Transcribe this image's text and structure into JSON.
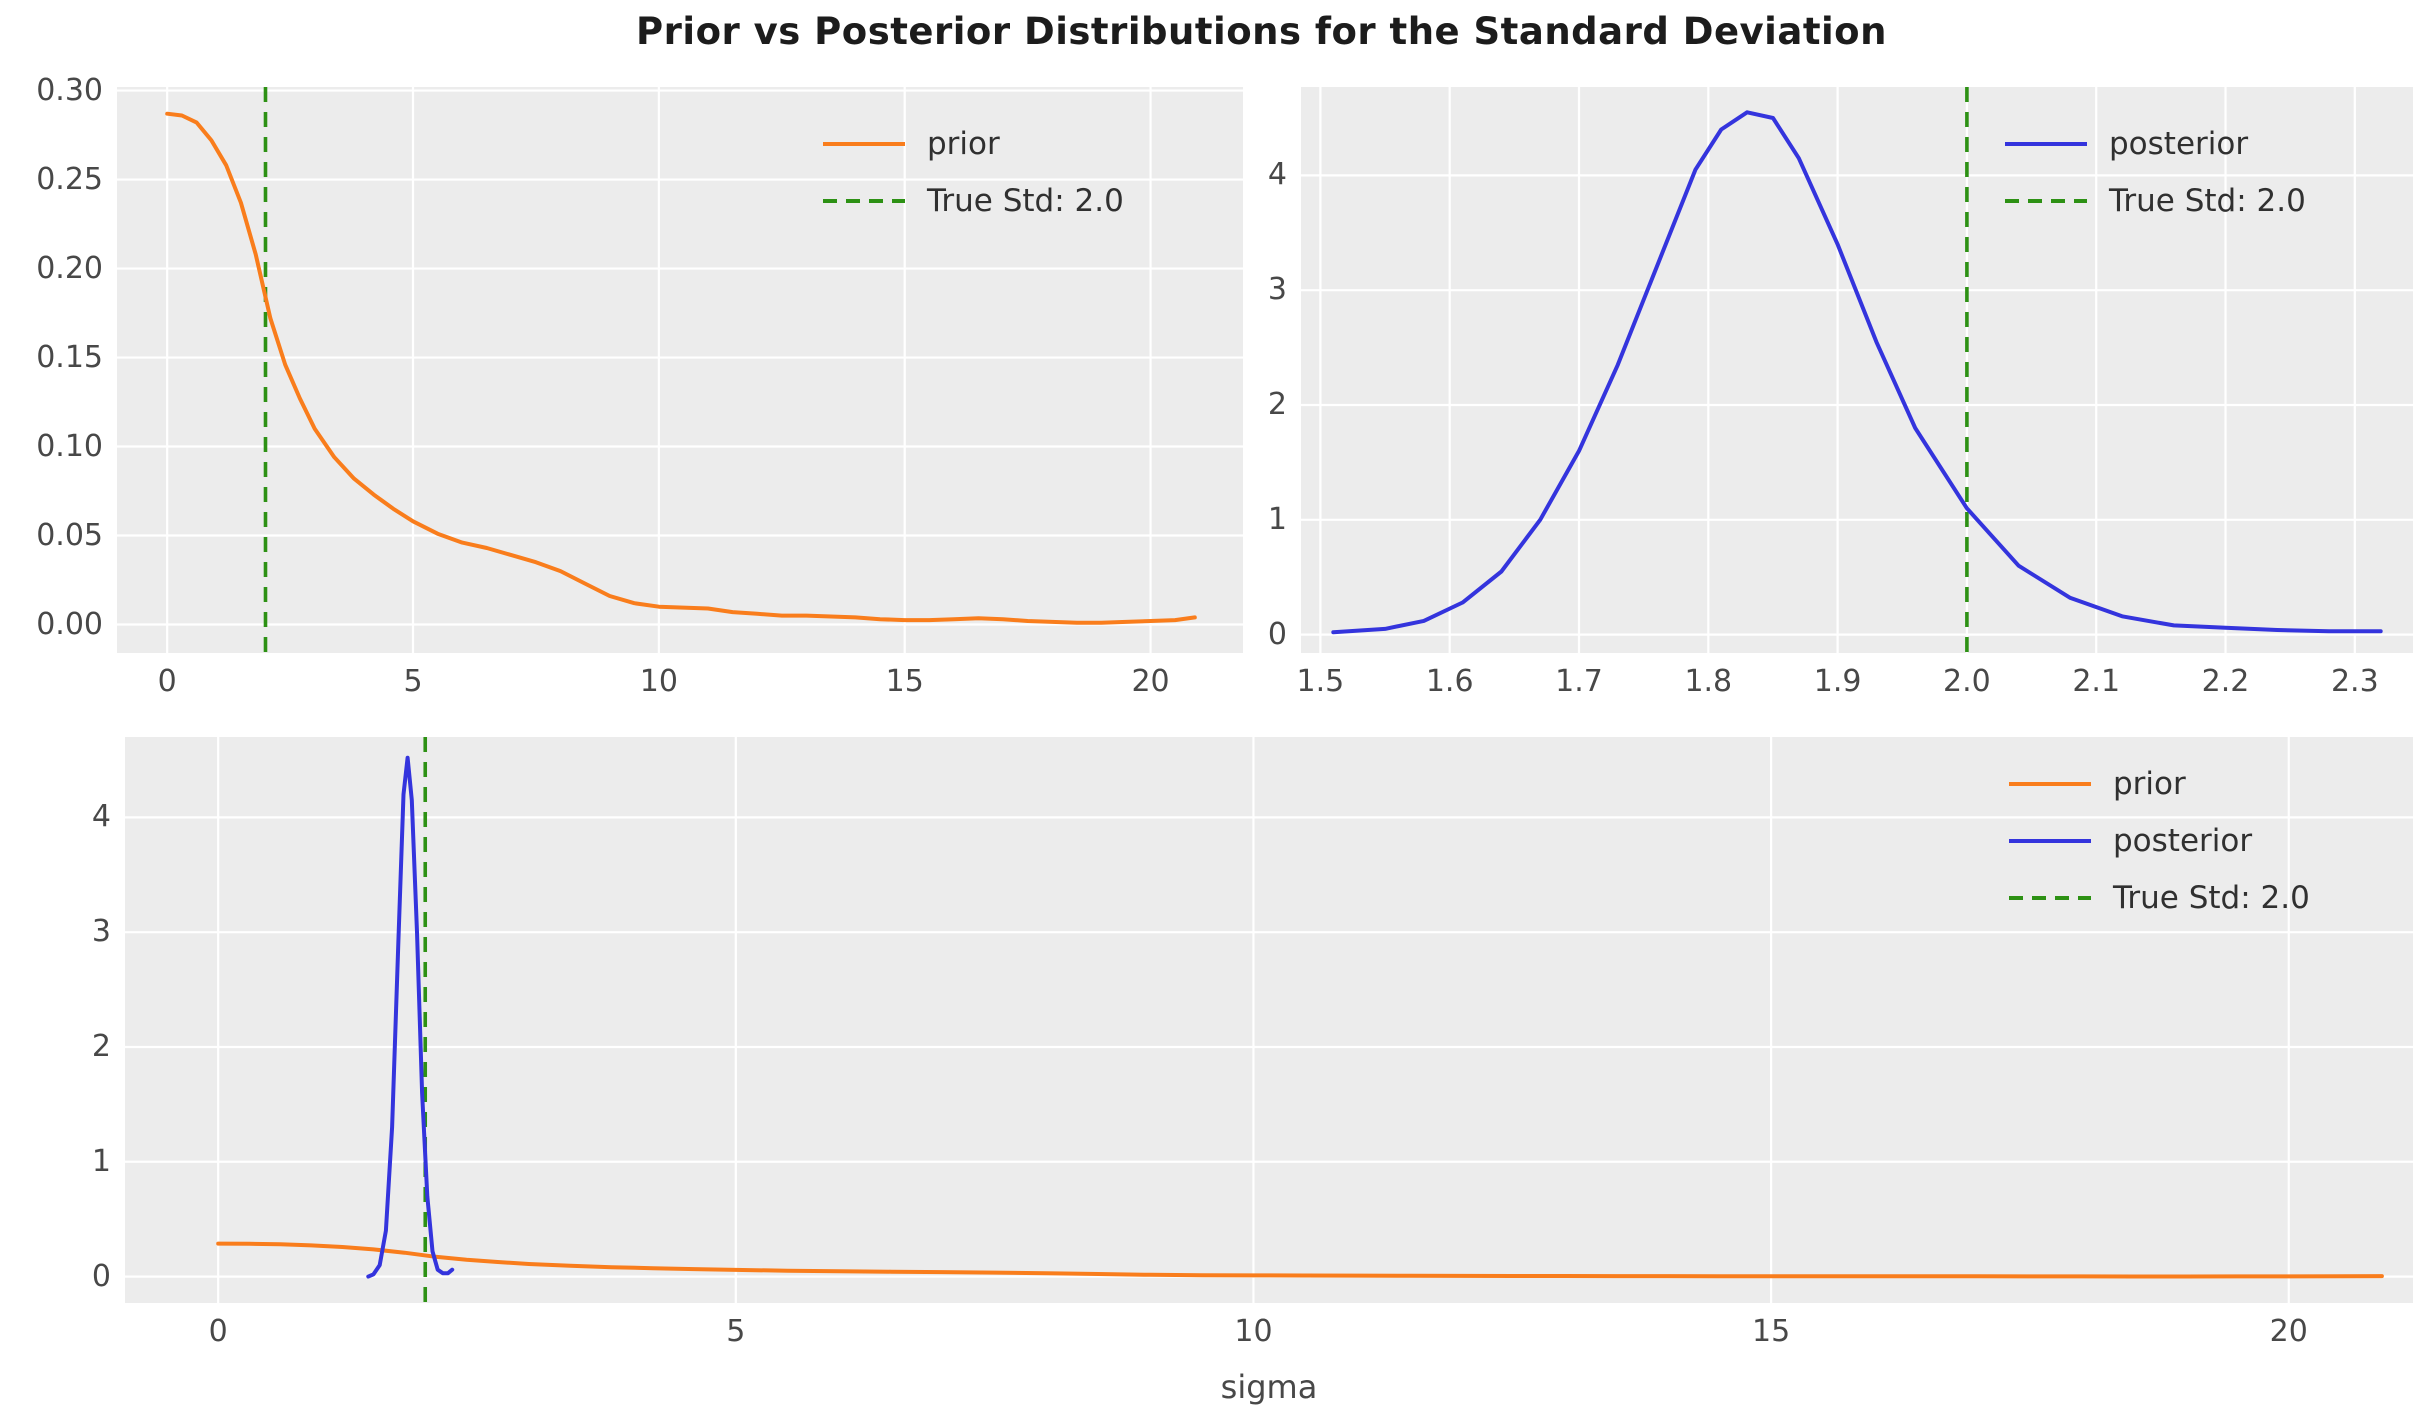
{
  "title": "Prior vs Posterior Distributions for the Standard Deviation",
  "colors": {
    "figure_bg": "#ffffff",
    "plot_bg": "#ececec",
    "grid": "#ffffff",
    "prior": "#f97d1c",
    "posterior": "#3434dd",
    "true_std": "#2d9114",
    "tick_text": "#484848",
    "legend_text": "#303030",
    "title_text": "#1c1c1c"
  },
  "chart_data": [
    {
      "type": "line",
      "name": "prior-distribution",
      "xlim": [
        -1.02,
        21.88
      ],
      "ylim": [
        -0.016,
        0.302
      ],
      "xticks": [
        0,
        5,
        10,
        15,
        20
      ],
      "xtick_labels": [
        "0",
        "5",
        "10",
        "15",
        "20"
      ],
      "yticks": [
        0.0,
        0.05,
        0.1,
        0.15,
        0.2,
        0.25,
        0.3
      ],
      "ytick_labels": [
        "0.00",
        "0.05",
        "0.10",
        "0.15",
        "0.20",
        "0.25",
        "0.30"
      ],
      "xlabel": "",
      "grid": true,
      "vline": {
        "x": 2.0,
        "label": "True Std: 2.0",
        "color": "true_std"
      },
      "series": [
        {
          "name": "prior",
          "color": "prior",
          "x": [
            0,
            0.3,
            0.6,
            0.9,
            1.2,
            1.5,
            1.8,
            2.1,
            2.4,
            2.7,
            3.0,
            3.4,
            3.8,
            4.2,
            4.6,
            5.0,
            5.5,
            6.0,
            6.5,
            7.0,
            7.5,
            8.0,
            8.5,
            9.0,
            9.5,
            10.0,
            10.5,
            11.0,
            11.5,
            12.0,
            12.5,
            13.0,
            13.5,
            14.0,
            14.5,
            15.0,
            15.5,
            16.0,
            16.5,
            17.0,
            17.5,
            18.0,
            18.5,
            19.0,
            19.5,
            20.0,
            20.5,
            20.9
          ],
          "y": [
            0.287,
            0.286,
            0.282,
            0.272,
            0.258,
            0.237,
            0.208,
            0.172,
            0.146,
            0.127,
            0.11,
            0.094,
            0.082,
            0.073,
            0.065,
            0.058,
            0.051,
            0.046,
            0.043,
            0.039,
            0.035,
            0.03,
            0.023,
            0.016,
            0.012,
            0.01,
            0.0095,
            0.009,
            0.007,
            0.006,
            0.005,
            0.005,
            0.0045,
            0.004,
            0.003,
            0.0025,
            0.0025,
            0.003,
            0.0035,
            0.003,
            0.002,
            0.0015,
            0.001,
            0.001,
            0.0015,
            0.002,
            0.0025,
            0.004
          ]
        }
      ],
      "legend": [
        {
          "label": "prior",
          "color": "prior",
          "dashed": false
        },
        {
          "label": "True Std: 2.0",
          "color": "true_std",
          "dashed": true
        }
      ]
    },
    {
      "type": "line",
      "name": "posterior-distribution",
      "xlim": [
        1.485,
        2.345
      ],
      "ylim": [
        -0.16,
        4.77
      ],
      "xticks": [
        1.5,
        1.6,
        1.7,
        1.8,
        1.9,
        2.0,
        2.1,
        2.2,
        2.3
      ],
      "xtick_labels": [
        "1.5",
        "1.6",
        "1.7",
        "1.8",
        "1.9",
        "2.0",
        "2.1",
        "2.2",
        "2.3"
      ],
      "yticks": [
        0,
        1,
        2,
        3,
        4
      ],
      "ytick_labels": [
        "0",
        "1",
        "2",
        "3",
        "4"
      ],
      "xlabel": "",
      "grid": true,
      "vline": {
        "x": 2.0,
        "label": "True Std: 2.0",
        "color": "true_std"
      },
      "series": [
        {
          "name": "posterior",
          "color": "posterior",
          "x": [
            1.51,
            1.55,
            1.58,
            1.61,
            1.64,
            1.67,
            1.7,
            1.73,
            1.76,
            1.79,
            1.81,
            1.83,
            1.85,
            1.87,
            1.9,
            1.93,
            1.96,
            2.0,
            2.04,
            2.08,
            2.12,
            2.16,
            2.2,
            2.24,
            2.28,
            2.32
          ],
          "y": [
            0.02,
            0.05,
            0.12,
            0.28,
            0.55,
            1.0,
            1.6,
            2.35,
            3.2,
            4.05,
            4.4,
            4.55,
            4.5,
            4.15,
            3.4,
            2.55,
            1.8,
            1.1,
            0.6,
            0.32,
            0.16,
            0.08,
            0.06,
            0.04,
            0.03,
            0.03
          ]
        }
      ],
      "legend": [
        {
          "label": "posterior",
          "color": "posterior",
          "dashed": false
        },
        {
          "label": "True Std: 2.0",
          "color": "true_std",
          "dashed": true
        }
      ]
    },
    {
      "type": "line",
      "name": "prior-vs-posterior-combined",
      "xlim": [
        -0.9,
        21.2
      ],
      "ylim": [
        -0.23,
        4.7
      ],
      "xticks": [
        0,
        5,
        10,
        15,
        20
      ],
      "xtick_labels": [
        "0",
        "5",
        "10",
        "15",
        "20"
      ],
      "yticks": [
        0,
        1,
        2,
        3,
        4
      ],
      "ytick_labels": [
        "0",
        "1",
        "2",
        "3",
        "4"
      ],
      "xlabel": "sigma",
      "grid": true,
      "vline": {
        "x": 2.0,
        "label": "True Std: 2.0",
        "color": "true_std"
      },
      "series": [
        {
          "name": "prior",
          "color": "prior",
          "x": [
            0,
            0.3,
            0.6,
            0.9,
            1.2,
            1.5,
            1.8,
            2.1,
            2.4,
            2.7,
            3.0,
            3.4,
            3.8,
            4.2,
            4.6,
            5.0,
            5.5,
            6.0,
            6.5,
            7.0,
            7.5,
            8.0,
            8.5,
            9.0,
            9.5,
            10.0,
            10.5,
            11.0,
            11.5,
            12.0,
            12.5,
            13.0,
            13.5,
            14.0,
            14.5,
            15.0,
            15.5,
            16.0,
            16.5,
            17.0,
            17.5,
            18.0,
            18.5,
            19.0,
            19.5,
            20.0,
            20.5,
            20.9
          ],
          "y": [
            0.287,
            0.286,
            0.282,
            0.272,
            0.258,
            0.237,
            0.208,
            0.172,
            0.146,
            0.127,
            0.11,
            0.094,
            0.082,
            0.073,
            0.065,
            0.058,
            0.051,
            0.046,
            0.043,
            0.039,
            0.035,
            0.03,
            0.023,
            0.016,
            0.012,
            0.01,
            0.0095,
            0.009,
            0.007,
            0.006,
            0.005,
            0.005,
            0.0045,
            0.004,
            0.003,
            0.0025,
            0.0025,
            0.003,
            0.0035,
            0.003,
            0.002,
            0.0015,
            0.001,
            0.001,
            0.0015,
            0.002,
            0.0025,
            0.004
          ]
        },
        {
          "name": "posterior",
          "color": "posterior",
          "x": [
            1.45,
            1.5,
            1.56,
            1.62,
            1.68,
            1.74,
            1.79,
            1.83,
            1.87,
            1.92,
            1.97,
            2.02,
            2.07,
            2.12,
            2.17,
            2.22,
            2.26
          ],
          "y": [
            0.0,
            0.02,
            0.1,
            0.4,
            1.3,
            2.9,
            4.2,
            4.52,
            4.15,
            3.0,
            1.6,
            0.7,
            0.22,
            0.06,
            0.03,
            0.03,
            0.06
          ]
        }
      ],
      "legend": [
        {
          "label": "prior",
          "color": "prior",
          "dashed": false
        },
        {
          "label": "posterior",
          "color": "posterior",
          "dashed": false
        },
        {
          "label": "True Std: 2.0",
          "color": "true_std",
          "dashed": true
        }
      ]
    }
  ]
}
